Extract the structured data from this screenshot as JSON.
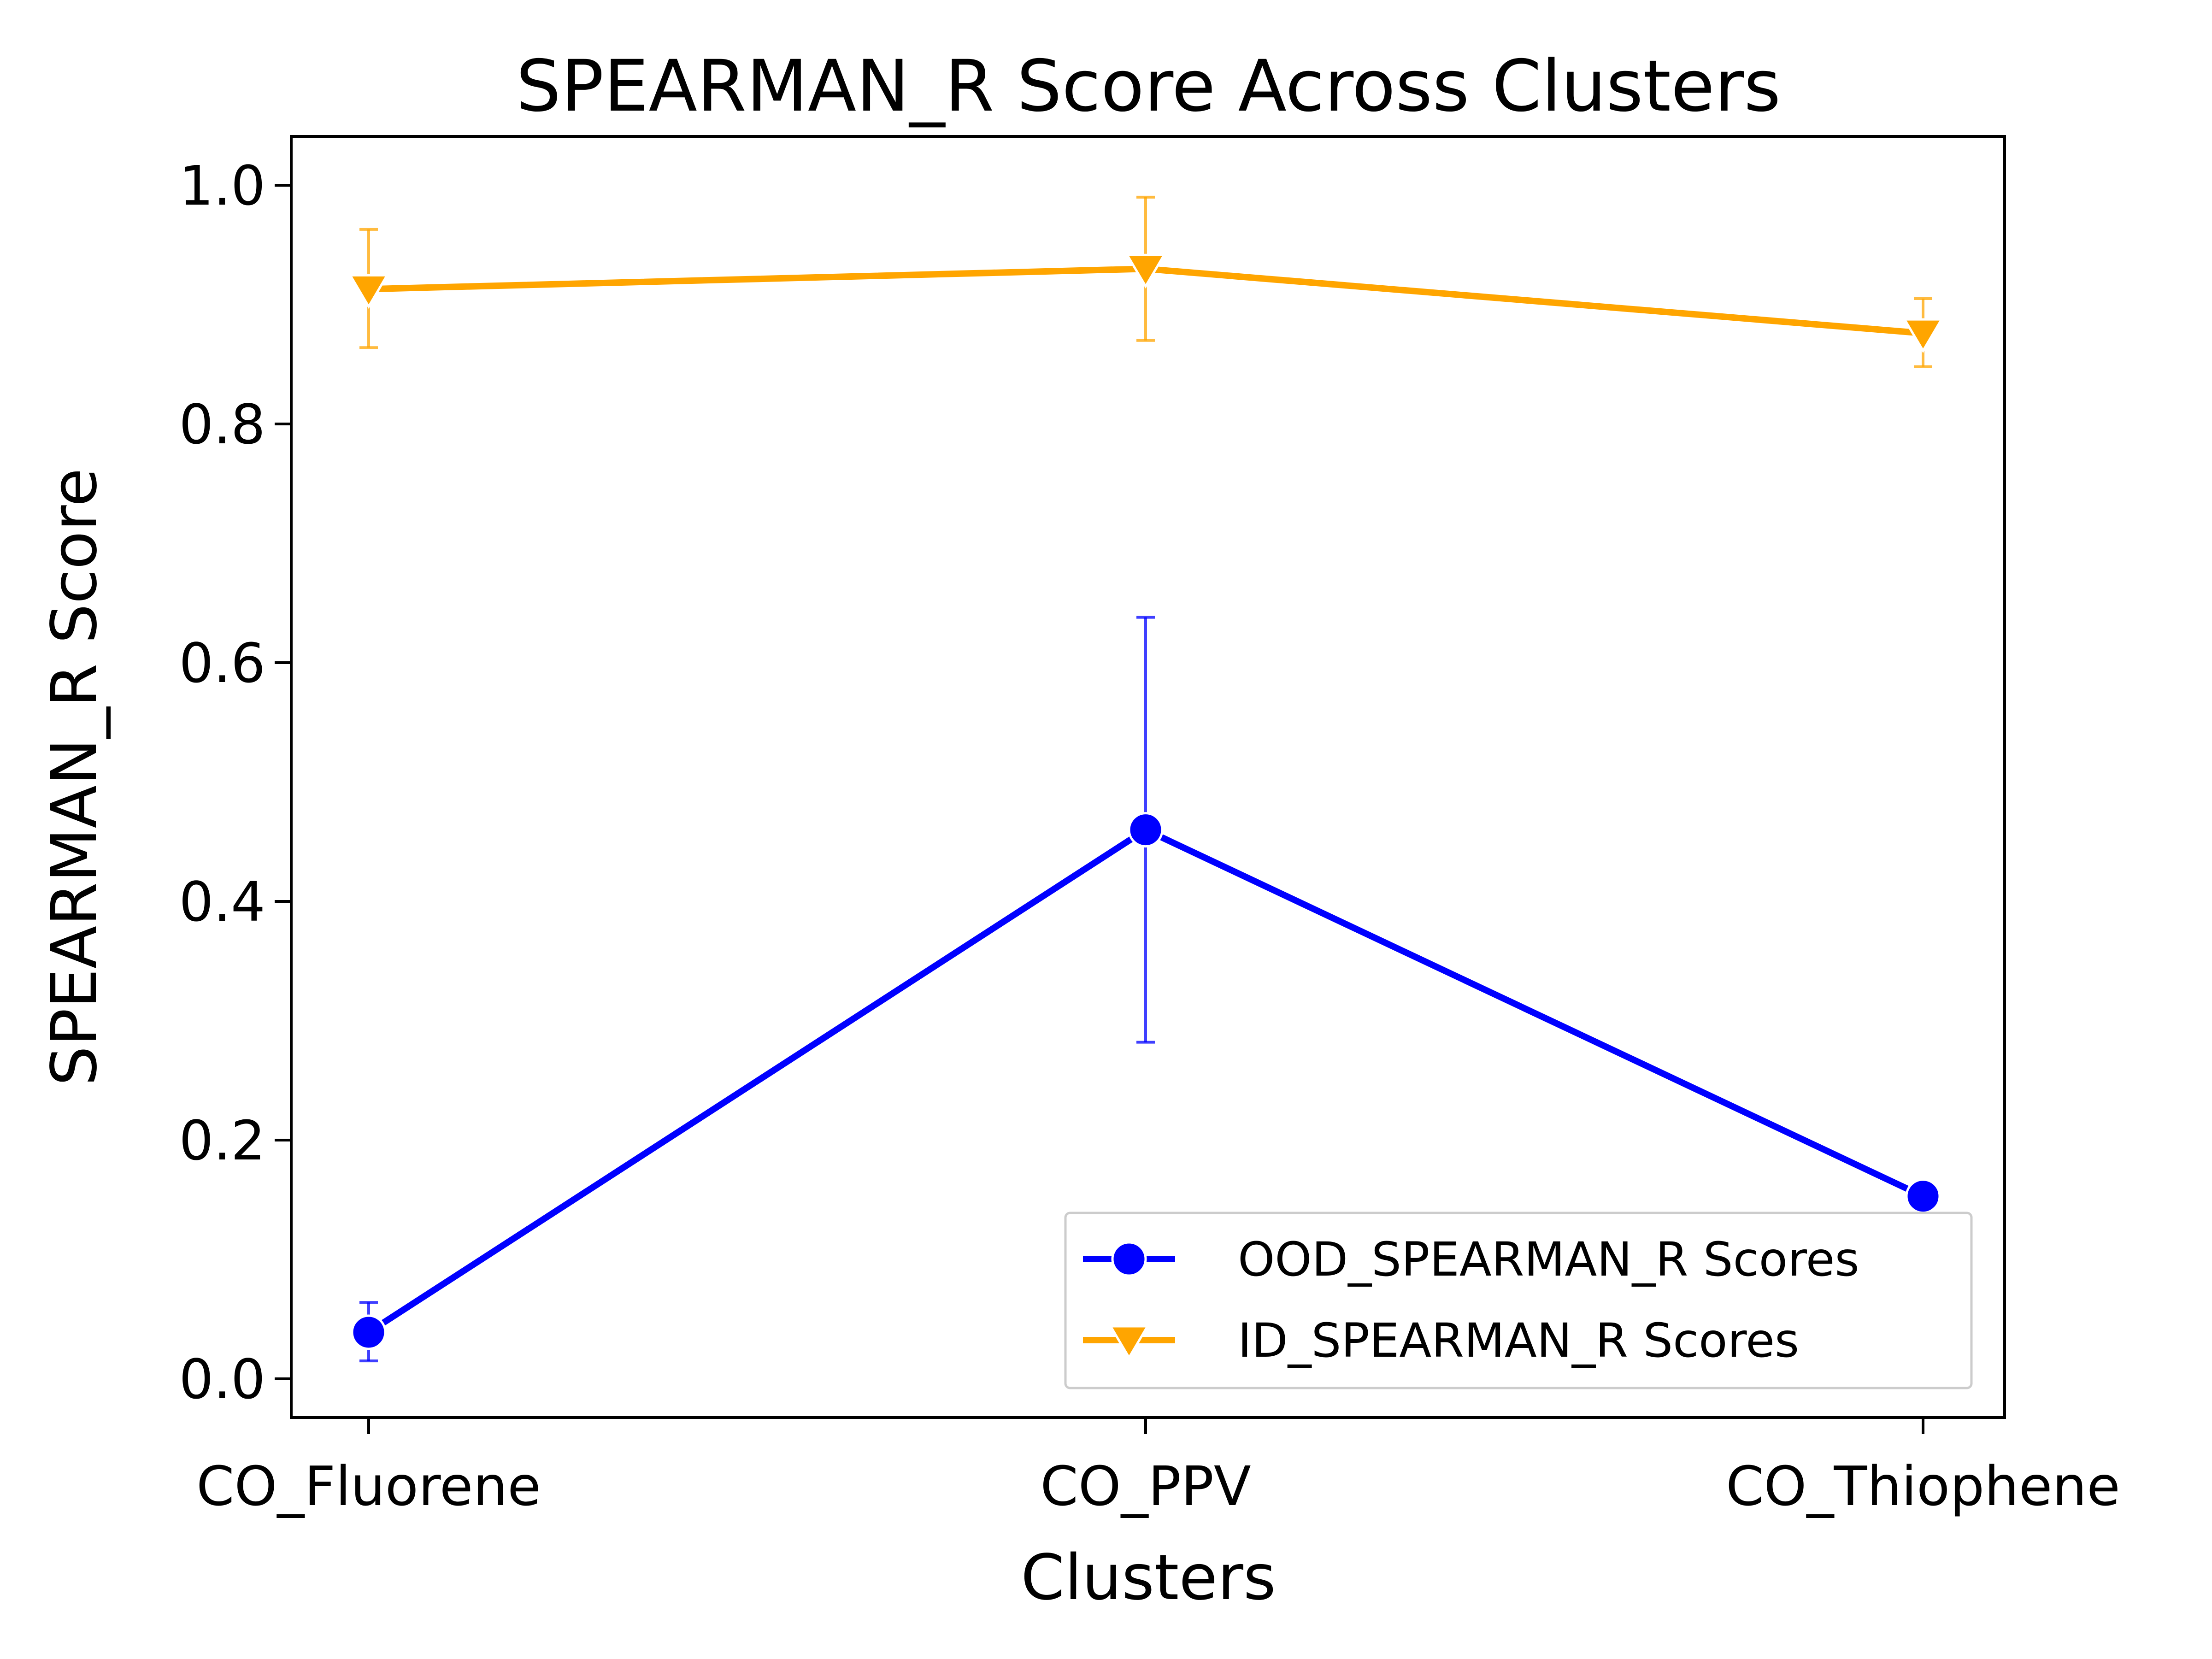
{
  "chart_data": {
    "type": "line",
    "title": "SPEARMAN_R Score Across Clusters",
    "xlabel": "Clusters",
    "ylabel": "SPEARMAN_R Score",
    "categories": [
      "CO_Fluorene",
      "CO_PPV",
      "CO_Thiophene"
    ],
    "ylim": [
      -0.033,
      1.04
    ],
    "yticks": [
      0.0,
      0.2,
      0.4,
      0.6,
      0.8,
      1.0
    ],
    "ytick_labels": [
      "0.0",
      "0.2",
      "0.4",
      "0.6",
      "0.8",
      "1.0"
    ],
    "grid": false,
    "legend_position": "lower-right",
    "series": [
      {
        "name": "OOD_SPEARMAN_R Scores",
        "color": "#0000ff",
        "marker": "circle",
        "values": [
          0.039,
          0.46,
          0.153
        ],
        "error_low": [
          0.015,
          0.282,
          0.143
        ],
        "error_high": [
          0.064,
          0.638,
          0.163
        ]
      },
      {
        "name": "ID_SPEARMAN_R Scores",
        "color": "#ffa500",
        "marker": "triangle-down",
        "values": [
          0.913,
          0.93,
          0.876
        ],
        "error_low": [
          0.864,
          0.87,
          0.848
        ],
        "error_high": [
          0.963,
          0.99,
          0.905
        ]
      }
    ]
  }
}
